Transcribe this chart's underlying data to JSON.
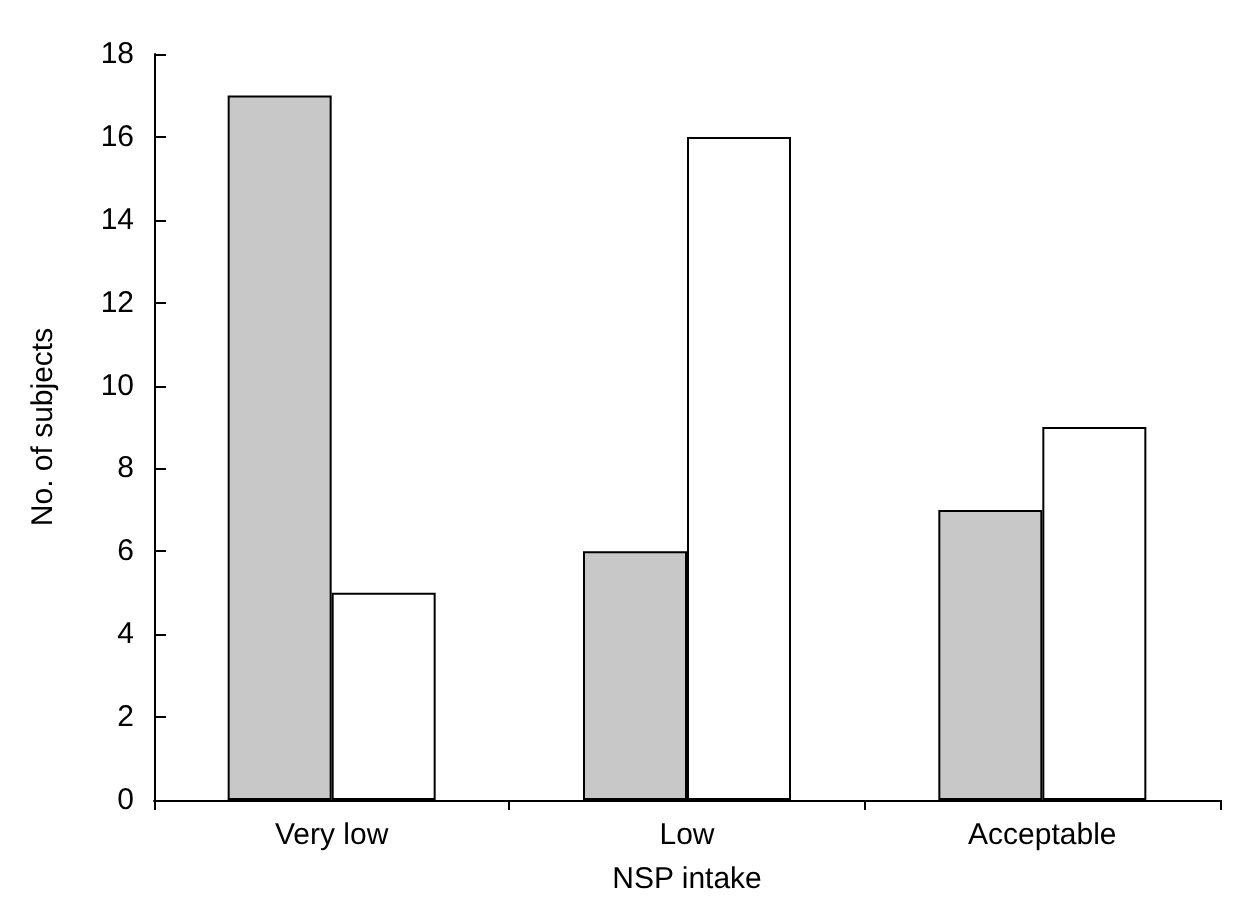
{
  "chart_data": {
    "type": "bar",
    "xlabel": "NSP intake",
    "ylabel": "No. of subjects",
    "categories": [
      "Very low",
      "Low",
      "Acceptable"
    ],
    "series": [
      {
        "color": "#c8c8c8",
        "values": [
          17,
          6,
          7
        ]
      },
      {
        "color": "#ffffff",
        "values": [
          5,
          16,
          9
        ]
      }
    ],
    "ylim": [
      0,
      18
    ],
    "yticks": [
      0,
      2,
      4,
      6,
      8,
      10,
      12,
      14,
      16,
      18
    ],
    "grid": false
  }
}
